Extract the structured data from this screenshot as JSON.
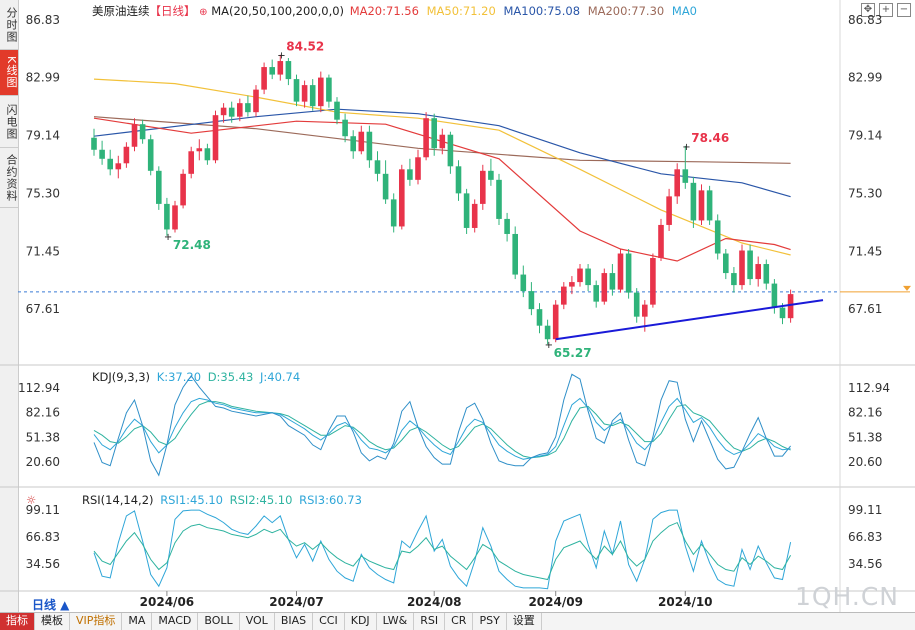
{
  "sidebar": [
    "分时图",
    "K线图",
    "闪电图",
    "合约资料"
  ],
  "header": {
    "title": "美原油连续",
    "period": "【日线】",
    "ma_def": "MA(20,50,100,200,0,0)",
    "ma20": "MA20:71.56",
    "ma50": "MA50:71.20",
    "ma100": "MA100:75.08",
    "ma200": "MA200:77.30",
    "ma0": "MA0"
  },
  "kdj": {
    "title": "KDJ(9,3,3)",
    "k": "K:37.20",
    "d": "D:35.43",
    "j": "J:40.74"
  },
  "rsi": {
    "title": "RSI(14,14,2)",
    "r1": "RSI1:45.10",
    "r2": "RSI2:45.10",
    "r3": "RSI3:60.73"
  },
  "price_ticks": [
    "86.83",
    "82.99",
    "79.14",
    "75.30",
    "71.45",
    "67.61"
  ],
  "kdj_ticks": [
    "112.94",
    "82.16",
    "51.38",
    "20.60"
  ],
  "rsi_ticks": [
    "99.11",
    "66.83",
    "34.56"
  ],
  "date_labels": [
    "2024/06",
    "2024/07",
    "2024/08",
    "2024/09",
    "2024/10"
  ],
  "annotations": {
    "high1": "84.52",
    "low1": "72.48",
    "low2": "65.27",
    "high2": "78.46"
  },
  "period_button": "日线 ▲",
  "bottom_tabs": [
    "指标",
    "模板",
    "VIP指标",
    "MA",
    "MACD",
    "BOLL",
    "VOL",
    "BIAS",
    "CCI",
    "KDJ",
    "LW&",
    "RSI",
    "CR",
    "PSY",
    "设置"
  ],
  "watermark": "1QH.CN",
  "colors": {
    "up": "#e8334a",
    "down": "#2fb37a",
    "ma20": "#e33b3b",
    "ma50": "#f2c13a",
    "ma100": "#2a56a8",
    "ma200": "#9c6a5a",
    "trend": "#1a1ad8"
  },
  "chart_data": {
    "type": "candlestick",
    "title": "美原油连续 日线",
    "ylim": [
      64,
      87.5
    ],
    "ohlc": [
      [
        79.0,
        79.6,
        77.8,
        78.2
      ],
      [
        78.2,
        78.8,
        77.2,
        77.6
      ],
      [
        77.6,
        78.2,
        76.5,
        76.9
      ],
      [
        76.9,
        77.8,
        76.3,
        77.3
      ],
      [
        77.3,
        78.7,
        77.0,
        78.4
      ],
      [
        78.4,
        80.3,
        78.1,
        79.9
      ],
      [
        79.9,
        80.2,
        78.6,
        78.9
      ],
      [
        78.9,
        79.2,
        76.5,
        76.8
      ],
      [
        76.8,
        77.1,
        74.2,
        74.6
      ],
      [
        74.6,
        75.0,
        72.48,
        72.9
      ],
      [
        72.9,
        74.8,
        72.7,
        74.5
      ],
      [
        74.5,
        76.9,
        74.3,
        76.6
      ],
      [
        76.6,
        78.4,
        76.3,
        78.1
      ],
      [
        78.1,
        78.9,
        77.5,
        78.3
      ],
      [
        78.3,
        78.6,
        77.2,
        77.5
      ],
      [
        77.5,
        80.8,
        77.3,
        80.5
      ],
      [
        80.5,
        81.3,
        80.0,
        81.0
      ],
      [
        81.0,
        81.4,
        80.0,
        80.4
      ],
      [
        80.4,
        81.6,
        80.1,
        81.3
      ],
      [
        81.3,
        81.8,
        80.4,
        80.7
      ],
      [
        80.7,
        82.5,
        80.4,
        82.2
      ],
      [
        82.2,
        84.0,
        81.9,
        83.7
      ],
      [
        83.7,
        84.2,
        82.9,
        83.2
      ],
      [
        83.2,
        84.52,
        82.8,
        84.1
      ],
      [
        84.1,
        84.3,
        82.5,
        82.9
      ],
      [
        82.9,
        83.2,
        81.1,
        81.4
      ],
      [
        81.4,
        82.8,
        81.0,
        82.5
      ],
      [
        82.5,
        82.9,
        80.8,
        81.1
      ],
      [
        81.1,
        83.4,
        80.7,
        83.0
      ],
      [
        83.0,
        83.2,
        81.0,
        81.4
      ],
      [
        81.4,
        81.7,
        79.9,
        80.2
      ],
      [
        80.2,
        80.6,
        78.7,
        79.1
      ],
      [
        79.1,
        79.5,
        77.6,
        78.1
      ],
      [
        78.1,
        79.8,
        77.9,
        79.4
      ],
      [
        79.4,
        79.8,
        77.0,
        77.5
      ],
      [
        77.5,
        78.1,
        76.1,
        76.6
      ],
      [
        76.6,
        77.5,
        74.6,
        74.9
      ],
      [
        74.9,
        75.3,
        72.7,
        73.1
      ],
      [
        73.1,
        77.2,
        72.9,
        76.9
      ],
      [
        76.9,
        77.6,
        75.8,
        76.2
      ],
      [
        76.2,
        78.2,
        75.9,
        77.7
      ],
      [
        77.7,
        80.7,
        77.5,
        80.3
      ],
      [
        80.3,
        80.6,
        77.8,
        78.3
      ],
      [
        78.3,
        79.6,
        77.9,
        79.2
      ],
      [
        79.2,
        79.4,
        76.6,
        77.1
      ],
      [
        77.1,
        77.5,
        74.8,
        75.3
      ],
      [
        75.3,
        75.6,
        72.6,
        73.0
      ],
      [
        73.0,
        74.9,
        72.7,
        74.6
      ],
      [
        74.6,
        77.2,
        74.2,
        76.8
      ],
      [
        76.8,
        77.6,
        75.8,
        76.2
      ],
      [
        76.2,
        76.6,
        73.2,
        73.6
      ],
      [
        73.6,
        74.0,
        72.1,
        72.6
      ],
      [
        72.6,
        73.1,
        69.6,
        69.9
      ],
      [
        69.9,
        70.5,
        68.4,
        68.8
      ],
      [
        68.8,
        69.4,
        67.2,
        67.6
      ],
      [
        67.6,
        68.0,
        66.0,
        66.5
      ],
      [
        66.5,
        66.9,
        65.27,
        65.6
      ],
      [
        65.6,
        68.2,
        65.4,
        67.9
      ],
      [
        67.9,
        69.4,
        67.6,
        69.1
      ],
      [
        69.1,
        69.8,
        68.6,
        69.4
      ],
      [
        69.4,
        70.6,
        69.1,
        70.3
      ],
      [
        70.3,
        70.6,
        68.8,
        69.2
      ],
      [
        69.2,
        69.5,
        67.7,
        68.1
      ],
      [
        68.1,
        70.3,
        67.9,
        70.0
      ],
      [
        70.0,
        70.6,
        68.5,
        68.9
      ],
      [
        68.9,
        71.6,
        68.7,
        71.3
      ],
      [
        71.3,
        71.6,
        68.3,
        68.7
      ],
      [
        68.7,
        69.0,
        66.7,
        67.1
      ],
      [
        67.1,
        68.2,
        66.1,
        67.9
      ],
      [
        67.9,
        71.3,
        67.7,
        71.0
      ],
      [
        71.0,
        73.6,
        70.8,
        73.2
      ],
      [
        73.2,
        75.6,
        72.8,
        75.1
      ],
      [
        75.1,
        77.3,
        74.6,
        76.9
      ],
      [
        76.9,
        78.46,
        75.6,
        76.0
      ],
      [
        76.0,
        76.4,
        73.0,
        73.5
      ],
      [
        73.5,
        75.9,
        73.2,
        75.5
      ],
      [
        75.5,
        75.8,
        73.2,
        73.5
      ],
      [
        73.5,
        73.9,
        70.9,
        71.3
      ],
      [
        71.3,
        71.6,
        69.6,
        70.0
      ],
      [
        70.0,
        70.4,
        68.7,
        69.2
      ],
      [
        69.2,
        71.9,
        68.9,
        71.5
      ],
      [
        71.5,
        71.9,
        69.2,
        69.6
      ],
      [
        69.6,
        71.1,
        69.1,
        70.6
      ],
      [
        70.6,
        70.9,
        68.9,
        69.3
      ],
      [
        69.3,
        69.6,
        67.3,
        67.7
      ],
      [
        67.7,
        68.0,
        66.6,
        67.0
      ],
      [
        67.0,
        68.9,
        66.7,
        68.6
      ]
    ],
    "ma20": [
      [
        0,
        80.3
      ],
      [
        12,
        79.3
      ],
      [
        25,
        80.1
      ],
      [
        36,
        79.9
      ],
      [
        50,
        77.6
      ],
      [
        60,
        72.8
      ],
      [
        65,
        71.6
      ],
      [
        72,
        70.8
      ],
      [
        78,
        72.3
      ],
      [
        84,
        71.9
      ],
      [
        86,
        71.56
      ]
    ],
    "ma50": [
      [
        0,
        82.9
      ],
      [
        10,
        82.6
      ],
      [
        20,
        81.7
      ],
      [
        30,
        80.7
      ],
      [
        40,
        80.3
      ],
      [
        50,
        79.5
      ],
      [
        60,
        76.9
      ],
      [
        70,
        74.2
      ],
      [
        80,
        72.0
      ],
      [
        86,
        71.2
      ]
    ],
    "ma100": [
      [
        0,
        79.1
      ],
      [
        20,
        80.4
      ],
      [
        30,
        80.9
      ],
      [
        40,
        80.6
      ],
      [
        50,
        79.8
      ],
      [
        60,
        78.0
      ],
      [
        70,
        76.6
      ],
      [
        80,
        76.0
      ],
      [
        86,
        75.08
      ]
    ],
    "ma200": [
      [
        0,
        80.4
      ],
      [
        20,
        79.6
      ],
      [
        40,
        78.3
      ],
      [
        60,
        77.5
      ],
      [
        75,
        77.4
      ],
      [
        86,
        77.3
      ]
    ],
    "trendline": [
      [
        57,
        65.6
      ],
      [
        90,
        68.2
      ]
    ],
    "current_price": 68.75,
    "kdj": {
      "ylim": [
        0,
        125
      ],
      "k": [
        55,
        42,
        36,
        46,
        62,
        74,
        66,
        46,
        32,
        42,
        64,
        82,
        96,
        100,
        98,
        94,
        92,
        88,
        86,
        84,
        82,
        82,
        82,
        80,
        74,
        68,
        62,
        54,
        48,
        56,
        66,
        70,
        62,
        48,
        38,
        36,
        32,
        40,
        60,
        72,
        64,
        52,
        42,
        34,
        30,
        46,
        64,
        74,
        70,
        56,
        42,
        34,
        28,
        24,
        26,
        28,
        30,
        40,
        66,
        92,
        100,
        88,
        70,
        60,
        68,
        74,
        60,
        44,
        36,
        48,
        70,
        90,
        100,
        86,
        70,
        76,
        64,
        48,
        36,
        30,
        34,
        44,
        56,
        50,
        40,
        36,
        37.2
      ],
      "d": [
        60,
        54,
        46,
        44,
        52,
        62,
        66,
        58,
        46,
        42,
        50,
        66,
        80,
        92,
        96,
        96,
        94,
        90,
        88,
        86,
        84,
        83,
        82,
        81,
        78,
        72,
        66,
        60,
        54,
        54,
        60,
        66,
        64,
        56,
        46,
        40,
        36,
        38,
        48,
        60,
        64,
        58,
        50,
        42,
        36,
        40,
        52,
        64,
        68,
        62,
        52,
        42,
        34,
        28,
        26,
        27,
        29,
        34,
        50,
        72,
        88,
        90,
        80,
        68,
        66,
        70,
        66,
        56,
        46,
        46,
        56,
        74,
        90,
        92,
        82,
        78,
        72,
        60,
        48,
        38,
        34,
        38,
        46,
        50,
        46,
        40,
        35.43
      ],
      "j": [
        45,
        20,
        16,
        50,
        82,
        98,
        66,
        22,
        4,
        42,
        92,
        114,
        128,
        114,
        102,
        90,
        88,
        84,
        82,
        80,
        78,
        80,
        82,
        78,
        66,
        60,
        54,
        42,
        36,
        60,
        78,
        78,
        58,
        32,
        22,
        28,
        24,
        44,
        84,
        96,
        64,
        40,
        26,
        18,
        18,
        58,
        88,
        94,
        74,
        44,
        22,
        18,
        16,
        16,
        26,
        30,
        32,
        52,
        98,
        132,
        124,
        84,
        50,
        44,
        72,
        82,
        48,
        20,
        16,
        52,
        98,
        122,
        120,
        74,
        46,
        72,
        48,
        24,
        12,
        14,
        34,
        56,
        76,
        50,
        28,
        28,
        40.74
      ]
    },
    "rsi": {
      "ylim": [
        0,
        110
      ],
      "r1": [
        50,
        38,
        34,
        48,
        62,
        72,
        58,
        40,
        28,
        36,
        60,
        74,
        80,
        82,
        78,
        76,
        74,
        70,
        68,
        66,
        70,
        76,
        72,
        76,
        64,
        56,
        60,
        52,
        60,
        50,
        42,
        36,
        32,
        44,
        38,
        34,
        30,
        28,
        50,
        48,
        56,
        66,
        52,
        56,
        44,
        36,
        28,
        42,
        58,
        52,
        38,
        32,
        26,
        22,
        20,
        18,
        16,
        40,
        54,
        58,
        62,
        50,
        40,
        56,
        46,
        62,
        42,
        32,
        40,
        62,
        72,
        80,
        84,
        62,
        46,
        58,
        46,
        34,
        28,
        26,
        42,
        34,
        44,
        38,
        30,
        28,
        45.1
      ],
      "r2": [
        50,
        38,
        34,
        48,
        62,
        72,
        58,
        40,
        28,
        36,
        60,
        74,
        80,
        82,
        78,
        76,
        74,
        70,
        68,
        66,
        70,
        76,
        72,
        76,
        64,
        56,
        60,
        52,
        60,
        50,
        42,
        36,
        32,
        44,
        38,
        34,
        30,
        28,
        50,
        48,
        56,
        66,
        52,
        56,
        44,
        36,
        28,
        42,
        58,
        52,
        38,
        32,
        26,
        22,
        20,
        18,
        16,
        40,
        54,
        58,
        62,
        50,
        40,
        56,
        46,
        62,
        42,
        32,
        40,
        62,
        72,
        80,
        84,
        62,
        46,
        58,
        46,
        34,
        28,
        26,
        42,
        34,
        44,
        38,
        30,
        28,
        45.1
      ],
      "r3": [
        48,
        20,
        18,
        60,
        92,
        98,
        62,
        22,
        8,
        30,
        88,
        98,
        99,
        99,
        94,
        90,
        84,
        76,
        72,
        70,
        80,
        92,
        84,
        92,
        64,
        42,
        58,
        38,
        62,
        40,
        26,
        18,
        14,
        46,
        30,
        22,
        16,
        12,
        62,
        54,
        74,
        92,
        50,
        64,
        32,
        18,
        8,
        38,
        78,
        56,
        26,
        16,
        8,
        6,
        6,
        6,
        5,
        62,
        86,
        90,
        94,
        58,
        30,
        74,
        46,
        86,
        34,
        14,
        40,
        88,
        96,
        99,
        99,
        56,
        26,
        62,
        36,
        16,
        10,
        8,
        52,
        28,
        56,
        36,
        18,
        16,
        60.73
      ]
    }
  }
}
